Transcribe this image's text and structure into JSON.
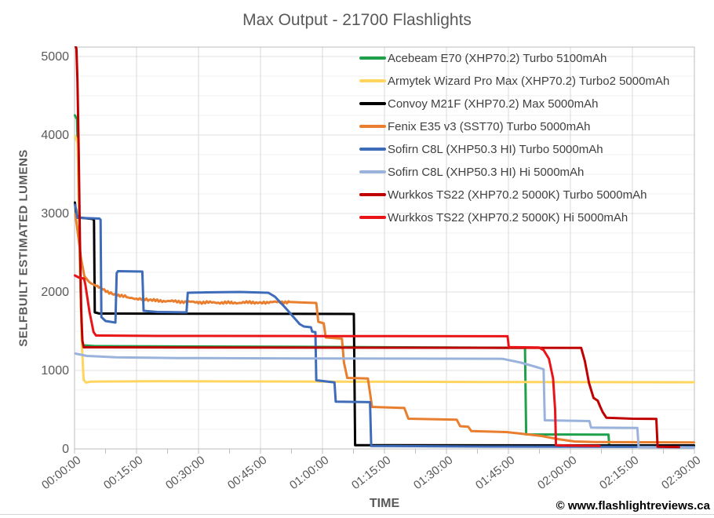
{
  "title": "Max Output - 21700 Flashlights",
  "watermark": "© www.flashlightreviews.ca",
  "y_axis": {
    "title": "SELFBUILT ESTIMATED LUMENS",
    "tick_values": [
      0,
      1000,
      2000,
      3000,
      4000,
      5000
    ],
    "minor_gridline_step": 250,
    "range": [
      0,
      5120
    ]
  },
  "x_axis": {
    "title": "TIME",
    "tick_labels": [
      "00:00:00",
      "00:15:00",
      "00:30:00",
      "00:45:00",
      "01:00:00",
      "01:15:00",
      "01:30:00",
      "01:45:00",
      "02:00:00",
      "02:15:00",
      "02:30:00"
    ],
    "tick_step_minutes": 15,
    "minor_tick_step_minutes": 7.5,
    "range_minutes": [
      0,
      150
    ]
  },
  "chart_data": {
    "type": "line",
    "x_unit": "minutes",
    "y_unit": "selfbuilt estimated lumens",
    "legend_position": "top-right-inside",
    "grid": true,
    "series": [
      {
        "name": "Acebeam E70 (XHP70.2) Turbo 5100mAh",
        "color": "#1FA14B",
        "points": [
          [
            0.1,
            4250
          ],
          [
            0.6,
            4200
          ],
          [
            0.9,
            3600
          ],
          [
            1.3,
            2400
          ],
          [
            1.7,
            1500
          ],
          [
            2.0,
            1320
          ],
          [
            5,
            1310
          ],
          [
            30,
            1305
          ],
          [
            60,
            1300
          ],
          [
            90,
            1292
          ],
          [
            109.0,
            1288
          ],
          [
            109.3,
            185
          ],
          [
            120,
            184
          ],
          [
            129.2,
            182
          ],
          [
            129.4,
            45
          ],
          [
            131,
            42
          ]
        ]
      },
      {
        "name": "Armytek Wizard Pro Max (XHP70.2) Turbo2 5000mAh",
        "color": "#FFD45F",
        "points": [
          [
            0.2,
            3980
          ],
          [
            0.7,
            3900
          ],
          [
            1.0,
            3200
          ],
          [
            1.4,
            2200
          ],
          [
            1.8,
            1300
          ],
          [
            2.2,
            880
          ],
          [
            2.8,
            846
          ],
          [
            4,
            858
          ],
          [
            20,
            862
          ],
          [
            60,
            858
          ],
          [
            100,
            853
          ],
          [
            149.9,
            850
          ]
        ]
      },
      {
        "name": "Convoy M21F (XHP70.2) Max 5000mAh",
        "color": "#000000",
        "points": [
          [
            0.1,
            3140
          ],
          [
            0.4,
            3000
          ],
          [
            0.8,
            2950
          ],
          [
            4.4,
            2930
          ],
          [
            4.7,
            2915
          ],
          [
            4.9,
            1740
          ],
          [
            6,
            1725
          ],
          [
            30,
            1722
          ],
          [
            67.6,
            1720
          ],
          [
            67.9,
            48
          ],
          [
            100,
            46
          ],
          [
            149.9,
            45
          ]
        ]
      },
      {
        "name": "Fenix E35 v3 (SST70) Turbo 5000mAh",
        "color": "#E87E2E",
        "noisy_range": [
          3,
          58
        ],
        "points": [
          [
            0.2,
            2990
          ],
          [
            0.8,
            2750
          ],
          [
            1.6,
            2420
          ],
          [
            2.4,
            2200
          ],
          [
            3.5,
            2130
          ],
          [
            6,
            2060
          ],
          [
            9,
            1980
          ],
          [
            13,
            1930
          ],
          [
            18,
            1895
          ],
          [
            24,
            1880
          ],
          [
            30,
            1868
          ],
          [
            38,
            1862
          ],
          [
            45,
            1868
          ],
          [
            52,
            1872
          ],
          [
            58.5,
            1860
          ],
          [
            59.0,
            1620
          ],
          [
            60.3,
            1600
          ],
          [
            60.8,
            1420
          ],
          [
            64.7,
            1405
          ],
          [
            65.2,
            1100
          ],
          [
            66.0,
            905
          ],
          [
            71.0,
            898
          ],
          [
            72.0,
            535
          ],
          [
            79.8,
            522
          ],
          [
            80.8,
            385
          ],
          [
            92.5,
            372
          ],
          [
            93.3,
            290
          ],
          [
            95.3,
            282
          ],
          [
            96.0,
            228
          ],
          [
            104.5,
            215
          ],
          [
            108,
            195
          ],
          [
            113,
            165
          ],
          [
            117,
            125
          ],
          [
            121,
            95
          ],
          [
            126,
            88
          ],
          [
            149.9,
            82
          ]
        ]
      },
      {
        "name": "Sofirn C8L (XHP50.3 HI) Turbo 5000mAh",
        "color": "#3E6CB8",
        "points": [
          [
            0.1,
            3110
          ],
          [
            0.4,
            3050
          ],
          [
            0.7,
            2945
          ],
          [
            6.0,
            2935
          ],
          [
            6.3,
            2920
          ],
          [
            6.5,
            1680
          ],
          [
            7.5,
            1630
          ],
          [
            9.9,
            1610
          ],
          [
            10.2,
            2240
          ],
          [
            10.5,
            2265
          ],
          [
            16.4,
            2260
          ],
          [
            16.7,
            1760
          ],
          [
            20,
            1745
          ],
          [
            27.1,
            1740
          ],
          [
            27.4,
            1990
          ],
          [
            32,
            1995
          ],
          [
            40,
            2000
          ],
          [
            46.9,
            1990
          ],
          [
            48.5,
            1940
          ],
          [
            51,
            1800
          ],
          [
            54.5,
            1590
          ],
          [
            55.5,
            1560
          ],
          [
            57.2,
            1550
          ],
          [
            57.5,
            1495
          ],
          [
            58.3,
            1488
          ],
          [
            58.5,
            875
          ],
          [
            62.9,
            848
          ],
          [
            63.2,
            602
          ],
          [
            71.5,
            596
          ],
          [
            71.8,
            38
          ],
          [
            100,
            30
          ],
          [
            149.9,
            26
          ]
        ]
      },
      {
        "name": "Sofirn C8L (XHP50.3 HI) Hi 5000mAh",
        "color": "#9AB3DC",
        "points": [
          [
            0.2,
            1215
          ],
          [
            3,
            1185
          ],
          [
            10,
            1168
          ],
          [
            25,
            1158
          ],
          [
            60,
            1152
          ],
          [
            90,
            1150
          ],
          [
            103.6,
            1148
          ],
          [
            108,
            1100
          ],
          [
            112,
            1040
          ],
          [
            113.5,
            1015
          ],
          [
            113.8,
            365
          ],
          [
            124.6,
            355
          ],
          [
            125.0,
            272
          ],
          [
            136.2,
            268
          ],
          [
            136.5,
            22
          ],
          [
            149.9,
            16
          ]
        ]
      },
      {
        "name": "Wurkkos TS22 (XHP70.2 5000K) Turbo 5000mAh",
        "color": "#C00000",
        "points": [
          [
            0.15,
            5150
          ],
          [
            0.45,
            5100
          ],
          [
            0.7,
            4700
          ],
          [
            1.0,
            3800
          ],
          [
            1.3,
            2700
          ],
          [
            1.6,
            1800
          ],
          [
            1.9,
            1380
          ],
          [
            2.2,
            1295
          ],
          [
            30,
            1292
          ],
          [
            80,
            1290
          ],
          [
            122.6,
            1288
          ],
          [
            123.5,
            1120
          ],
          [
            124.5,
            840
          ],
          [
            125.6,
            650
          ],
          [
            126.6,
            615
          ],
          [
            127.2,
            540
          ],
          [
            127.8,
            470
          ],
          [
            128.7,
            398
          ],
          [
            135,
            385
          ],
          [
            140.8,
            382
          ],
          [
            141.1,
            28
          ],
          [
            146.3,
            24
          ]
        ]
      },
      {
        "name": "Wurkkos TS22 (XHP70.2 5000K) Hi 5000mAh",
        "color": "#E91418",
        "points": [
          [
            0.1,
            2210
          ],
          [
            1.0,
            2185
          ],
          [
            2.3,
            2170
          ],
          [
            2.6,
            2100
          ],
          [
            3.6,
            1750
          ],
          [
            4.6,
            1490
          ],
          [
            5.2,
            1445
          ],
          [
            20,
            1440
          ],
          [
            60,
            1438
          ],
          [
            104.8,
            1436
          ],
          [
            105.1,
            1298
          ],
          [
            112.4,
            1292
          ],
          [
            113.5,
            1260
          ],
          [
            114.8,
            1150
          ],
          [
            115.8,
            900
          ],
          [
            116.3,
            500
          ],
          [
            116.5,
            48
          ],
          [
            120,
            42
          ],
          [
            127.1,
            38
          ]
        ]
      }
    ]
  }
}
